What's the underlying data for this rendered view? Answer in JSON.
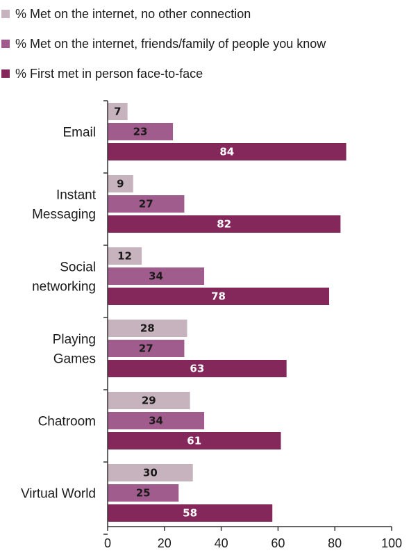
{
  "chart_data": {
    "type": "bar",
    "orientation": "horizontal",
    "categories": [
      "Email",
      "Instant Messaging",
      "Social networking",
      "Playing Games",
      "Chatroom",
      "Virtual World"
    ],
    "category_lines": [
      [
        "Email"
      ],
      [
        "Instant",
        "Messaging"
      ],
      [
        "Social",
        "networking"
      ],
      [
        "Playing",
        "Games"
      ],
      [
        "Chatroom"
      ],
      [
        "Virtual World"
      ]
    ],
    "series": [
      {
        "name": "% Met on the internet, no other connection",
        "color": "#c7b3bd",
        "label_color": "#1a1a1a",
        "values": [
          7,
          9,
          12,
          28,
          29,
          30
        ]
      },
      {
        "name": "% Met on the internet, friends/family of people you know",
        "color": "#a05c8c",
        "label_color": "#1a1a1a",
        "values": [
          23,
          27,
          34,
          27,
          34,
          25
        ]
      },
      {
        "name": "% First met in person face-to-face",
        "color": "#84285c",
        "label_color": "#ffffff",
        "values": [
          84,
          82,
          78,
          63,
          61,
          58
        ]
      }
    ],
    "xlim": [
      0,
      100
    ],
    "xticks": [
      "0",
      "20",
      "40",
      "60",
      "80",
      "100"
    ],
    "legend_position": "top",
    "grid": false
  }
}
